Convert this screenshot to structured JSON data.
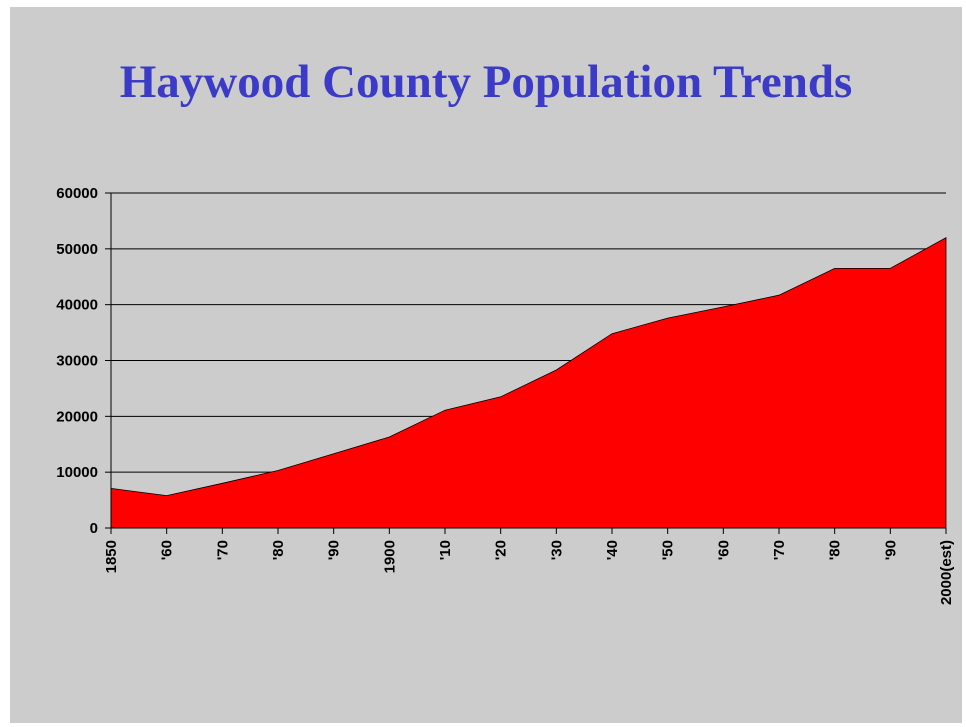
{
  "slide": {
    "title": "Haywood County Population Trends"
  },
  "chart_data": {
    "type": "area",
    "title": "Haywood County Population Trends",
    "xlabel": "",
    "ylabel": "",
    "categories": [
      "1850",
      "'60",
      "'70",
      "'80",
      "'90",
      "1900",
      "'10",
      "'20",
      "'30",
      "'40",
      "'50",
      "'60",
      "'70",
      "'80",
      "'90",
      "2000(est)"
    ],
    "series": [
      {
        "values": [
          7100,
          5800,
          8000,
          10300,
          13300,
          16300,
          21100,
          23500,
          28300,
          34800,
          37600,
          39600,
          41700,
          46500,
          46500,
          52000
        ]
      }
    ],
    "ylim": [
      0,
      60000
    ],
    "yticks": [
      "0",
      "10000",
      "20000",
      "30000",
      "40000",
      "50000",
      "60000"
    ],
    "grid": true,
    "legend": "none",
    "colors": {
      "fill": "#ff0000",
      "background": "#cccccc",
      "title": "#3b3bc8"
    }
  }
}
